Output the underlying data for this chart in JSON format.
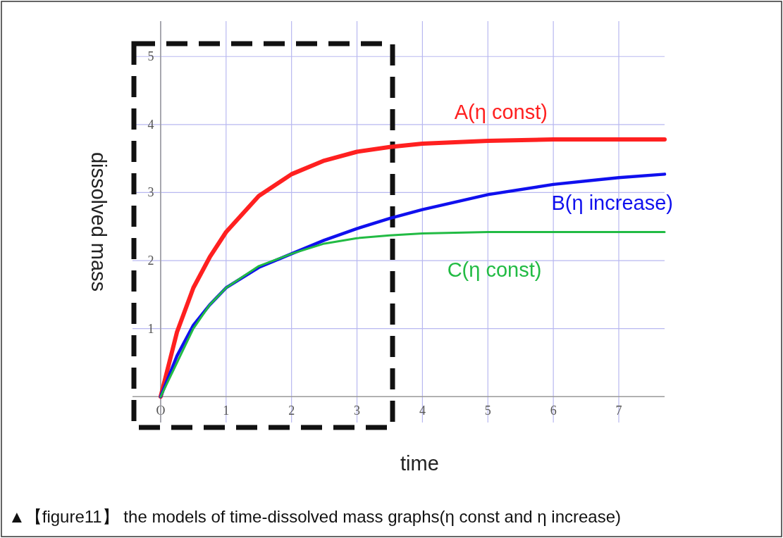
{
  "chart_data": {
    "type": "line",
    "xlabel": "time",
    "ylabel": "dissolved mass",
    "xlim": [
      -0.43,
      7.7
    ],
    "ylim": [
      -0.38,
      5.52
    ],
    "xticks": [
      {
        "value": 0,
        "label": "O"
      },
      1,
      2,
      3,
      4,
      5,
      6,
      7
    ],
    "yticks": [
      1,
      2,
      3,
      4,
      5
    ],
    "grid": true,
    "marker": "none",
    "line_style": "solid",
    "series": [
      {
        "name": "A(η const)",
        "color": "#ff2020",
        "x": [
          0,
          0.25,
          0.5,
          0.75,
          1,
          1.5,
          2,
          2.5,
          3,
          3.5,
          4,
          5,
          6,
          7.7
        ],
        "values": [
          0,
          0.95,
          1.6,
          2.05,
          2.42,
          2.95,
          3.27,
          3.47,
          3.6,
          3.67,
          3.72,
          3.76,
          3.78,
          3.78
        ]
      },
      {
        "name": "B(η increase)",
        "color": "#1010ee",
        "x": [
          0,
          0.25,
          0.5,
          0.75,
          1,
          1.5,
          2,
          2.5,
          3,
          3.5,
          4,
          5,
          6,
          7,
          7.7
        ],
        "values": [
          0,
          0.6,
          1.05,
          1.35,
          1.6,
          1.9,
          2.1,
          2.3,
          2.47,
          2.62,
          2.75,
          2.97,
          3.12,
          3.22,
          3.27
        ]
      },
      {
        "name": "C(η const)",
        "color": "#22bb44",
        "x": [
          0,
          0.25,
          0.5,
          0.75,
          1,
          1.5,
          2,
          2.5,
          3,
          3.5,
          4,
          5,
          7.7
        ],
        "values": [
          0,
          0.5,
          1.0,
          1.35,
          1.6,
          1.92,
          2.1,
          2.25,
          2.33,
          2.37,
          2.4,
          2.42,
          2.42
        ]
      }
    ],
    "annotations": [
      "▲【figure11】 the models of time-dissolved mass graphs(η const and η increase)"
    ]
  }
}
